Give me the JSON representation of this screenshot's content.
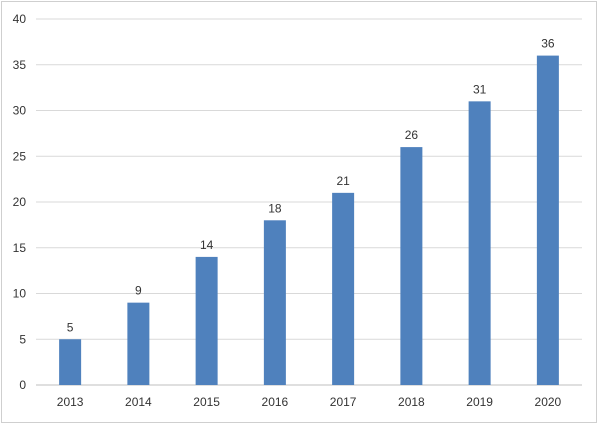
{
  "chart_data": {
    "type": "bar",
    "categories": [
      "2013",
      "2014",
      "2015",
      "2016",
      "2017",
      "2018",
      "2019",
      "2020"
    ],
    "values": [
      5,
      9,
      14,
      18,
      21,
      26,
      31,
      36
    ],
    "data_labels": [
      "5",
      "9",
      "14",
      "18",
      "21",
      "26",
      "31",
      "36"
    ],
    "y_ticks": [
      "0",
      "5",
      "10",
      "15",
      "20",
      "25",
      "30",
      "35",
      "40"
    ],
    "title": "",
    "xlabel": "",
    "ylabel": "",
    "ylim": [
      0,
      40
    ],
    "grid": true,
    "legend": "none",
    "bar_color": "#4f81bd"
  }
}
